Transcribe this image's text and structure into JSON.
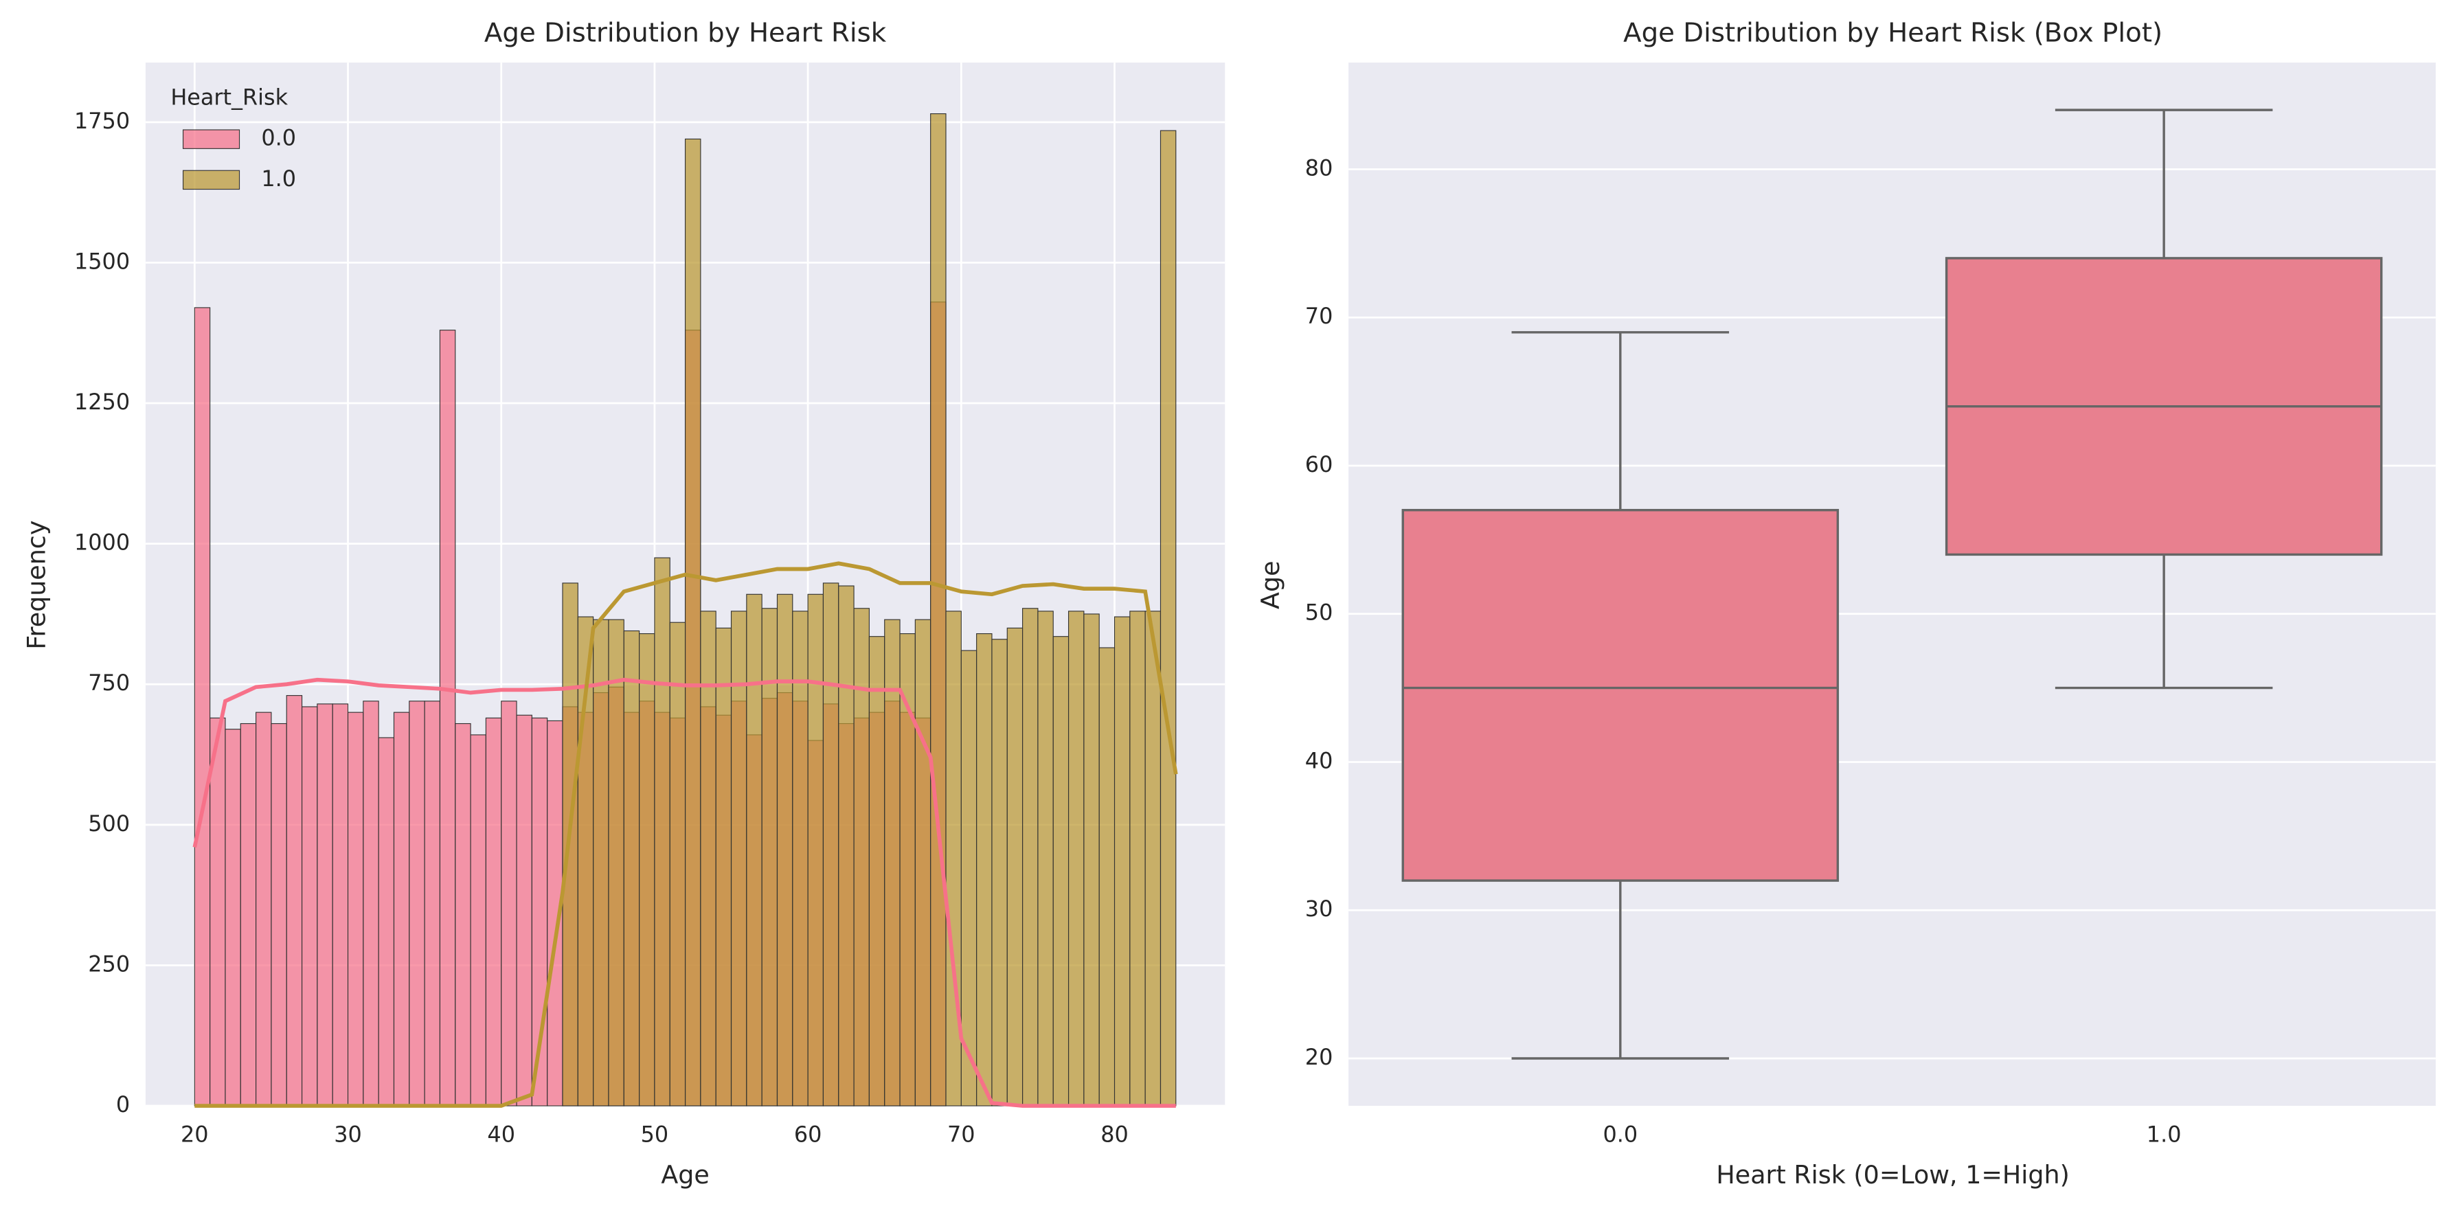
{
  "chart_data": [
    {
      "type": "histogram",
      "title": "Age Distribution by Heart Risk",
      "xlabel": "Age",
      "ylabel": "Frequency",
      "bins": [
        20,
        21,
        22,
        23,
        24,
        25,
        26,
        27,
        28,
        29,
        30,
        31,
        32,
        33,
        34,
        35,
        36,
        37,
        38,
        39,
        40,
        41,
        42,
        43,
        44,
        45,
        46,
        47,
        48,
        49,
        50,
        51,
        52,
        53,
        54,
        55,
        56,
        57,
        58,
        59,
        60,
        61,
        62,
        63,
        64,
        65,
        66,
        67,
        68,
        69,
        70,
        71,
        72,
        73,
        74,
        75,
        76,
        77,
        78,
        79,
        80,
        81,
        82,
        83,
        84
      ],
      "series": [
        {
          "name": "0.0",
          "color": "#f77189",
          "values": [
            1420,
            690,
            670,
            680,
            700,
            680,
            730,
            710,
            715,
            715,
            700,
            720,
            655,
            700,
            720,
            720,
            1380,
            680,
            660,
            690,
            720,
            695,
            690,
            685,
            710,
            700,
            735,
            745,
            700,
            720,
            700,
            690,
            1380,
            710,
            695,
            720,
            660,
            725,
            735,
            720,
            650,
            715,
            680,
            690,
            700,
            720,
            700,
            690,
            1430,
            0,
            0,
            0,
            0,
            0,
            0,
            0,
            0,
            0,
            0,
            0,
            0,
            0,
            0,
            0
          ],
          "kde": {
            "x": [
              20,
              22,
              24,
              26,
              28,
              30,
              32,
              34,
              36,
              38,
              40,
              42,
              44,
              46,
              48,
              50,
              52,
              54,
              56,
              58,
              60,
              62,
              64,
              66,
              68,
              70,
              72,
              74,
              76,
              78,
              80,
              82,
              84
            ],
            "values": [
              460,
              720,
              745,
              750,
              758,
              755,
              748,
              745,
              742,
              735,
              740,
              740,
              742,
              748,
              758,
              752,
              748,
              748,
              750,
              755,
              755,
              748,
              740,
              740,
              620,
              120,
              5,
              0,
              0,
              0,
              0,
              0,
              0
            ]
          }
        },
        {
          "name": "1.0",
          "color": "#bb9832",
          "values": [
            0,
            0,
            0,
            0,
            0,
            0,
            0,
            0,
            0,
            0,
            0,
            0,
            0,
            0,
            0,
            0,
            0,
            0,
            0,
            0,
            0,
            0,
            0,
            0,
            930,
            870,
            865,
            865,
            845,
            840,
            975,
            860,
            1720,
            880,
            850,
            880,
            910,
            885,
            910,
            880,
            910,
            930,
            925,
            885,
            835,
            865,
            840,
            865,
            1765,
            880,
            810,
            840,
            830,
            850,
            885,
            880,
            835,
            880,
            875,
            815,
            870,
            880,
            880,
            1735
          ],
          "kde": {
            "x": [
              20,
              22,
              24,
              26,
              28,
              30,
              32,
              34,
              36,
              38,
              40,
              42,
              44,
              46,
              48,
              50,
              52,
              54,
              56,
              58,
              60,
              62,
              64,
              66,
              68,
              70,
              72,
              74,
              76,
              78,
              80,
              82,
              84
            ],
            "values": [
              0,
              0,
              0,
              0,
              0,
              0,
              0,
              0,
              0,
              0,
              0,
              20,
              380,
              850,
              915,
              930,
              945,
              935,
              945,
              955,
              955,
              965,
              955,
              930,
              930,
              915,
              910,
              925,
              928,
              920,
              920,
              915,
              590
            ]
          }
        }
      ],
      "xlim": [
        16.8,
        87.2
      ],
      "ylim": [
        0,
        1856
      ],
      "xticks": [
        20,
        30,
        40,
        50,
        60,
        70,
        80
      ],
      "yticks": [
        0,
        250,
        500,
        750,
        1000,
        1250,
        1500,
        1750
      ],
      "grid": true,
      "legend": {
        "title": "Heart_Risk",
        "loc": "upper left"
      }
    },
    {
      "type": "box",
      "title": "Age Distribution by Heart Risk (Box Plot)",
      "xlabel": "Heart Risk (0=Low, 1=High)",
      "ylabel": "Age",
      "categories": [
        "0.0",
        "1.0"
      ],
      "color": "#e8808f",
      "boxes": [
        {
          "whislo": 20,
          "q1": 32,
          "med": 45,
          "q3": 57,
          "whishi": 69
        },
        {
          "whislo": 45,
          "q1": 54,
          "med": 64,
          "q3": 74,
          "whishi": 84
        }
      ],
      "ylim": [
        16.8,
        87.2
      ],
      "yticks": [
        20,
        30,
        40,
        50,
        60,
        70,
        80
      ],
      "grid": true
    }
  ]
}
